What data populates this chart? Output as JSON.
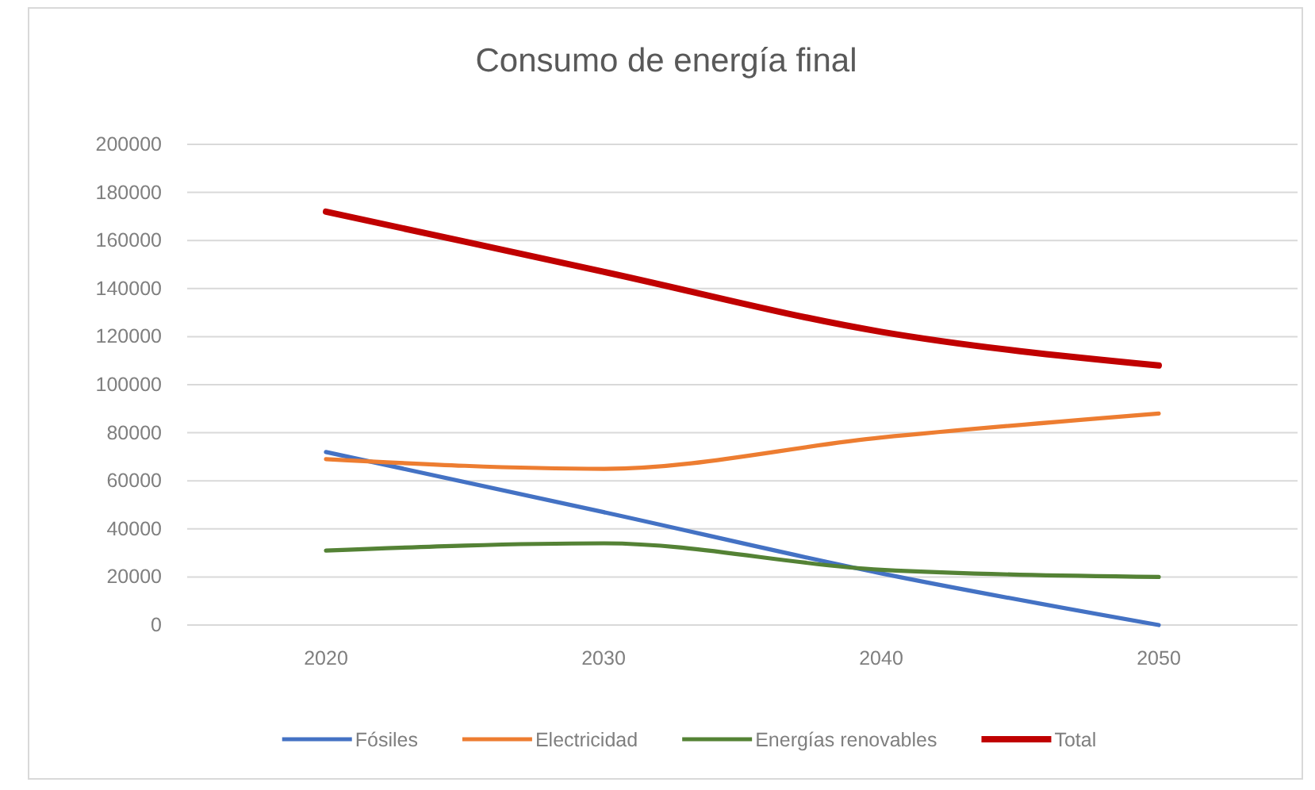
{
  "chart_data": {
    "type": "line",
    "title": "Consumo de energía final",
    "categories": [
      "2020",
      "2030",
      "2040",
      "2050"
    ],
    "series": [
      {
        "name": "Fósiles",
        "color": "#4472c4",
        "values": [
          72000,
          47000,
          21500,
          0
        ]
      },
      {
        "name": "Electricidad",
        "color": "#ed7d31",
        "values": [
          69000,
          65000,
          78000,
          88000
        ]
      },
      {
        "name": "Energías renovables",
        "color": "#548235",
        "values": [
          31000,
          34000,
          23000,
          20000
        ]
      },
      {
        "name": "Total",
        "color": "#c00000",
        "values": [
          172000,
          147000,
          122000,
          108000
        ]
      }
    ],
    "ylim": [
      0,
      200000
    ],
    "yticks": [
      0,
      20000,
      40000,
      60000,
      80000,
      100000,
      120000,
      140000,
      160000,
      180000,
      200000
    ],
    "grid": "y",
    "legend": "bottom",
    "marker": "none",
    "line_style": "solid"
  }
}
